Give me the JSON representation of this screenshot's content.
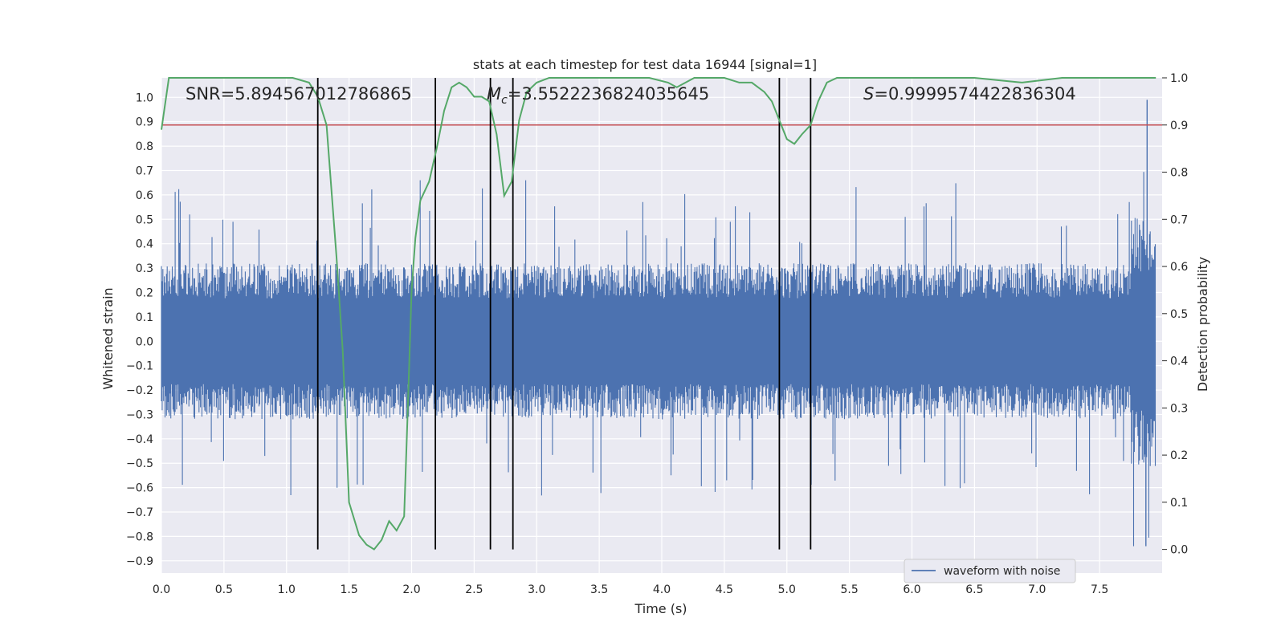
{
  "chart_data": {
    "type": "line",
    "title": "stats at each timestep for test data 16944 [signal=1]",
    "xlabel": "Time (s)",
    "ylabel": "Whitened strain",
    "y2label": "Detection probability",
    "xlim": [
      0,
      8.0
    ],
    "ylim": [
      -0.95,
      1.08
    ],
    "y2lim": [
      -0.05,
      1.0
    ],
    "x_ticks": [
      0.0,
      0.5,
      1.0,
      1.5,
      2.0,
      2.5,
      3.0,
      3.5,
      4.0,
      4.5,
      5.0,
      5.5,
      6.0,
      6.5,
      7.0,
      7.5
    ],
    "y_ticks": [
      1.0,
      0.9,
      0.8,
      0.7,
      0.6,
      0.5,
      0.4,
      0.3,
      0.2,
      0.1,
      0.0,
      -0.1,
      -0.2,
      -0.3,
      -0.4,
      -0.5,
      -0.6,
      -0.7,
      -0.8,
      -0.9
    ],
    "y2_ticks": [
      1.0,
      0.9,
      0.8,
      0.7,
      0.6,
      0.5,
      0.4,
      0.3,
      0.2,
      0.1,
      0.0
    ],
    "grid": true,
    "legend_position": "lower-right",
    "annotations": {
      "snr": "SNR=5.894567012786865",
      "mc_symbol": "M",
      "mc_sub": "c",
      "mc_value": "=3.5522236824035645",
      "s_symbol": "S",
      "s_value": "=0.9999574422836304"
    },
    "threshold": 0.9,
    "vertical_lines": [
      1.25,
      2.19,
      2.63,
      2.81,
      4.94,
      5.19
    ],
    "series": [
      {
        "name": "waveform with noise",
        "color": "#4c72b0",
        "noise_envelope": {
          "x_range": [
            0.0,
            7.95
          ],
          "typical_peak": 0.32,
          "max": 0.99,
          "min": -0.84
        }
      },
      {
        "color": "#55a868",
        "axis": "right",
        "x": [
          0.0,
          0.06,
          0.12,
          0.2,
          0.5,
          0.8,
          1.05,
          1.18,
          1.25,
          1.32,
          1.4,
          1.45,
          1.5,
          1.58,
          1.64,
          1.7,
          1.76,
          1.82,
          1.88,
          1.94,
          1.97,
          2.0,
          2.03,
          2.07,
          2.14,
          2.2,
          2.26,
          2.32,
          2.38,
          2.44,
          2.5,
          2.56,
          2.62,
          2.68,
          2.74,
          2.8,
          2.86,
          2.92,
          3.0,
          3.1,
          3.4,
          3.9,
          4.05,
          4.12,
          4.19,
          4.26,
          4.38,
          4.5,
          4.62,
          4.72,
          4.82,
          4.88,
          4.94,
          5.0,
          5.06,
          5.12,
          5.19,
          5.25,
          5.32,
          5.4,
          5.6,
          6.0,
          6.5,
          6.88,
          7.2,
          7.6,
          7.95
        ],
        "values": [
          0.89,
          1.0,
          1.0,
          1.0,
          1.0,
          1.0,
          1.0,
          0.99,
          0.96,
          0.9,
          0.62,
          0.42,
          0.1,
          0.03,
          0.01,
          0.0,
          0.02,
          0.06,
          0.04,
          0.07,
          0.3,
          0.55,
          0.66,
          0.74,
          0.78,
          0.85,
          0.93,
          0.98,
          0.99,
          0.98,
          0.96,
          0.96,
          0.95,
          0.88,
          0.75,
          0.78,
          0.91,
          0.97,
          0.99,
          1.0,
          1.0,
          1.0,
          0.99,
          0.98,
          0.99,
          1.0,
          1.0,
          1.0,
          0.99,
          0.99,
          0.97,
          0.95,
          0.91,
          0.87,
          0.86,
          0.88,
          0.9,
          0.95,
          0.99,
          1.0,
          1.0,
          1.0,
          1.0,
          0.99,
          1.0,
          1.0,
          1.0
        ]
      }
    ]
  }
}
